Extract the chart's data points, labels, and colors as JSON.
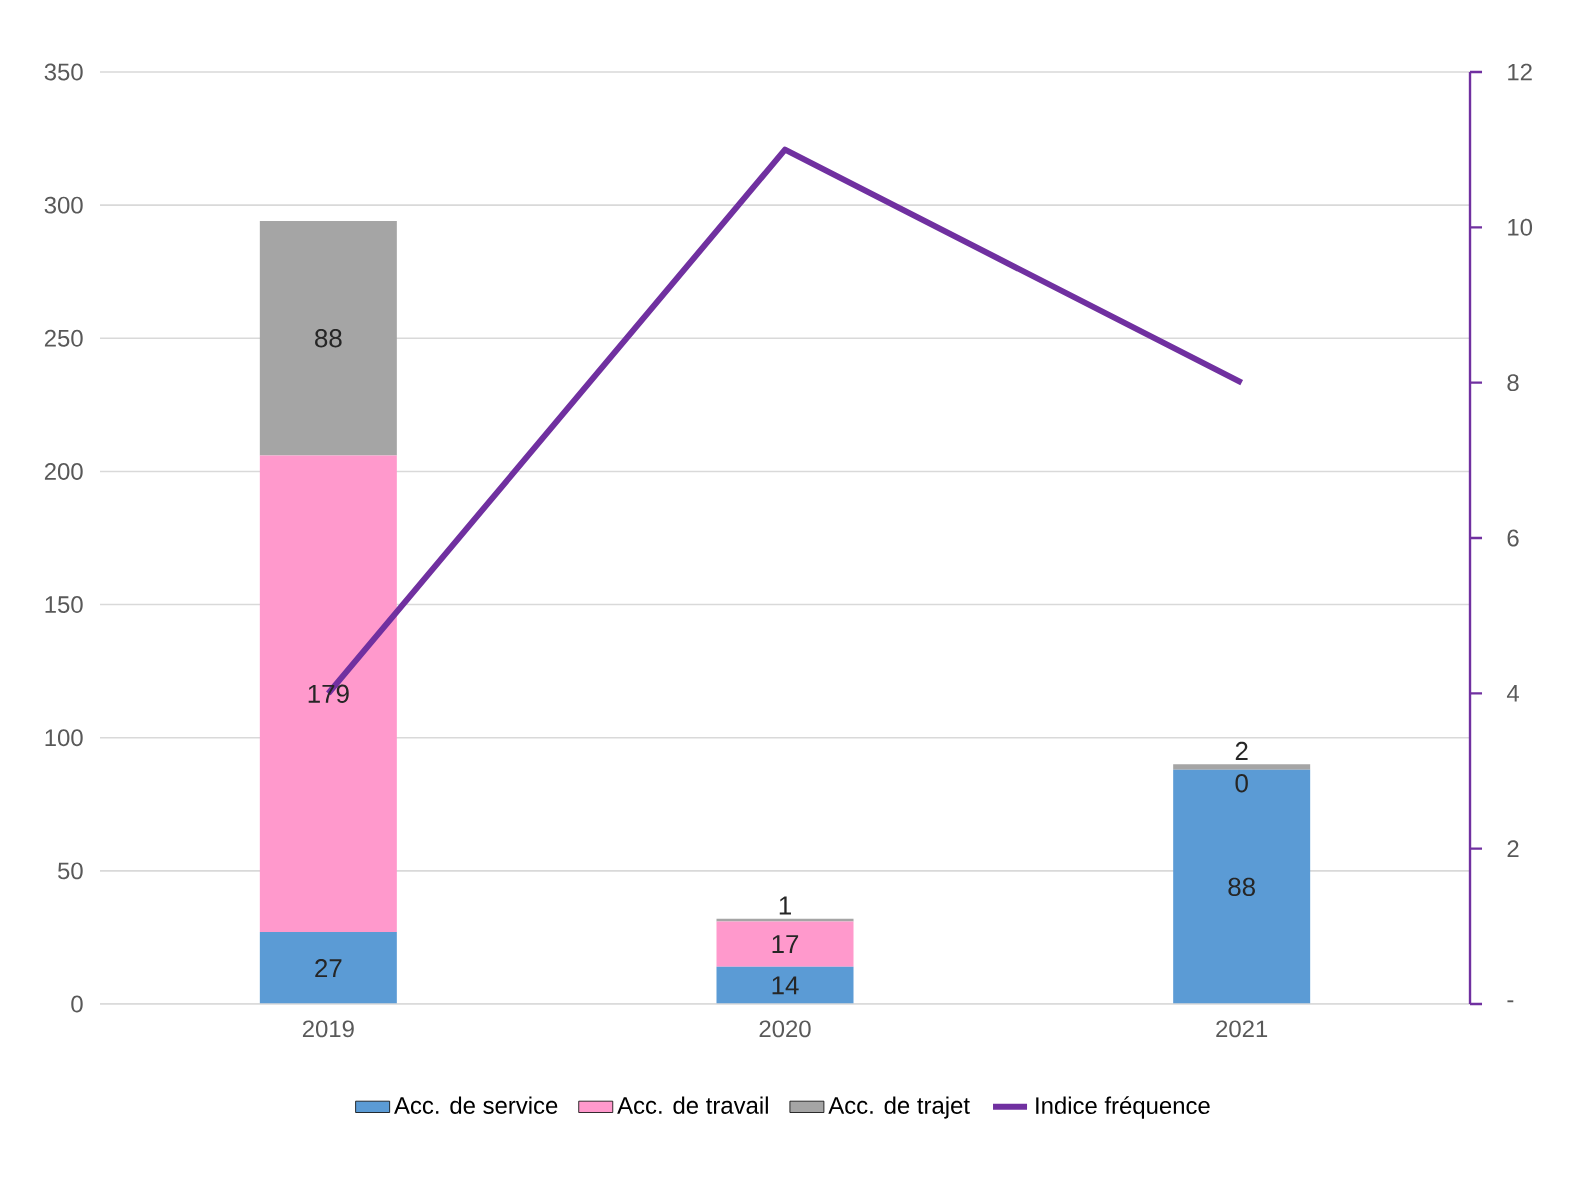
{
  "chart_data": {
    "type": "bar",
    "stacked": true,
    "categories": [
      "2019",
      "2020",
      "2021"
    ],
    "series": [
      {
        "name": "Acc. de service",
        "color": "#5b9bd5",
        "values": [
          27,
          14,
          88
        ],
        "value_labels": [
          "27",
          "14",
          "88"
        ]
      },
      {
        "name": "Acc. de travail",
        "color": "#ff99cc",
        "values": [
          179,
          17,
          0
        ],
        "value_labels": [
          "179",
          "17",
          "0"
        ]
      },
      {
        "name": "Acc. de trajet",
        "color": "#a5a5a5",
        "values": [
          88,
          1,
          2
        ],
        "value_labels": [
          "88",
          "1",
          "2"
        ]
      },
      {
        "name": "Indice fréquence",
        "type": "line",
        "axis": "y2",
        "color": "#7030a0",
        "values": [
          4,
          11,
          8
        ]
      }
    ],
    "ylim": [
      0,
      350
    ],
    "yticks": [
      0,
      50,
      100,
      150,
      200,
      250,
      300,
      350
    ],
    "y2lim": [
      0,
      12
    ],
    "y2ticks": [
      {
        "value": 0,
        "label": "-"
      },
      2,
      4,
      6,
      8,
      10,
      12
    ],
    "grid": "y",
    "legend": "bottom"
  }
}
